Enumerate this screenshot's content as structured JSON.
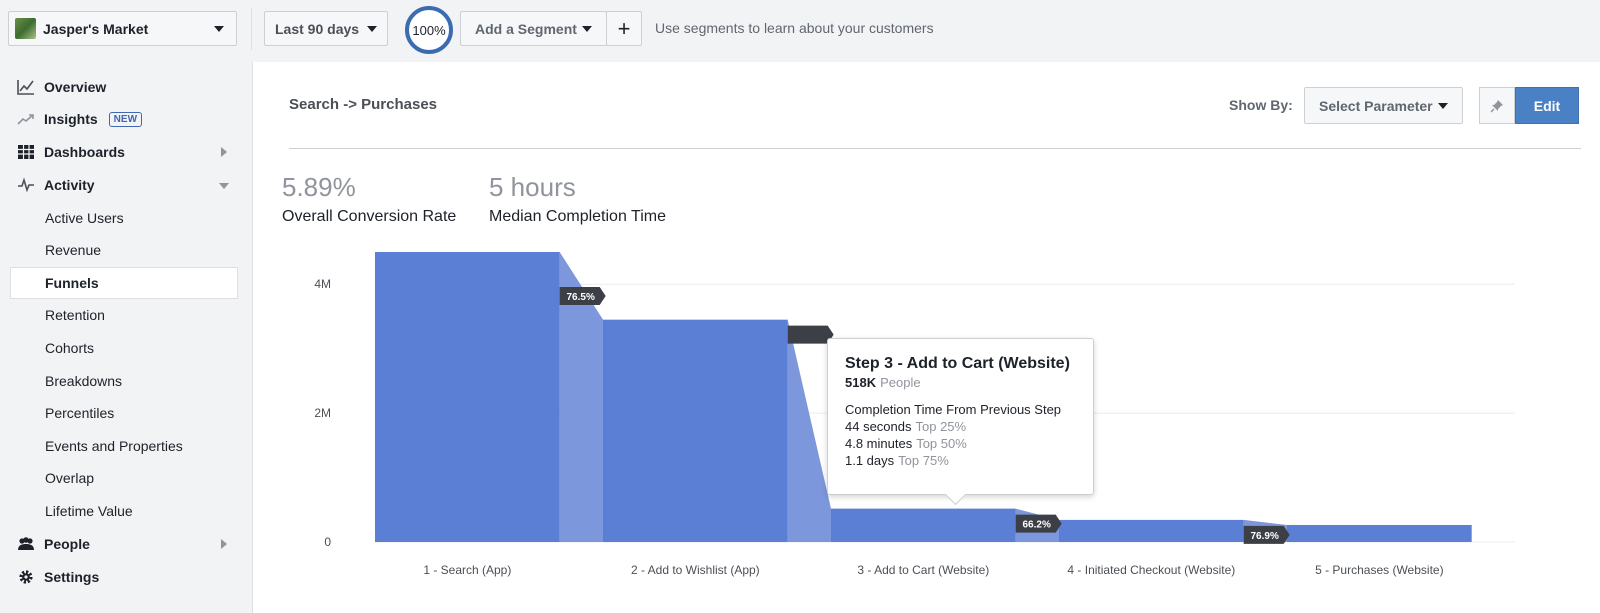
{
  "topbar": {
    "app_name": "Jasper's Market",
    "date_range": "Last 90 days",
    "zoom": "100%",
    "segment_label": "Add a Segment",
    "add_label": "+",
    "hint": "Use segments to learn about your customers"
  },
  "sidebar": {
    "items": [
      {
        "label": "Overview",
        "icon": "line-chart-icon"
      },
      {
        "label": "Insights",
        "icon": "trend-icon",
        "badge": "NEW"
      },
      {
        "label": "Dashboards",
        "icon": "grid-icon"
      },
      {
        "label": "Activity",
        "icon": "pulse-icon"
      },
      {
        "label": "Active Users"
      },
      {
        "label": "Revenue"
      },
      {
        "label": "Funnels"
      },
      {
        "label": "Retention"
      },
      {
        "label": "Cohorts"
      },
      {
        "label": "Breakdowns"
      },
      {
        "label": "Percentiles"
      },
      {
        "label": "Events and Properties"
      },
      {
        "label": "Overlap"
      },
      {
        "label": "Lifetime Value"
      },
      {
        "label": "People",
        "icon": "people-icon"
      },
      {
        "label": "Settings",
        "icon": "gear-icon"
      }
    ]
  },
  "main": {
    "title": "Search -> Purchases",
    "show_by": "Show By:",
    "select_param": "Select Parameter",
    "edit": "Edit",
    "metrics": [
      {
        "value": "5.89%",
        "label": "Overall Conversion Rate"
      },
      {
        "value": "5 hours",
        "label": "Median Completion Time"
      }
    ]
  },
  "tooltip": {
    "title": "Step 3 - Add to Cart (Website)",
    "count": "518K",
    "count_unit": "People",
    "subtitle": "Completion Time From Previous Step",
    "rows": [
      {
        "value": "44 seconds",
        "tag": "Top 25%"
      },
      {
        "value": "4.8 minutes",
        "tag": "Top 50%"
      },
      {
        "value": "1.1 days",
        "tag": "Top 75%"
      }
    ]
  },
  "chart_data": {
    "type": "bar",
    "categories": [
      "1 -  Search (App)",
      "2 - Add to Wishlist (App)",
      "3 - Add to Cart (Website)",
      "4 - Initiated Checkout (Website)",
      "5 - Purchases (Website)"
    ],
    "values": [
      4.5,
      3.45,
      0.518,
      0.343,
      0.264
    ],
    "value_unit": "M",
    "conversion_labels": [
      "76.5%",
      "",
      "66.2%",
      "76.9%"
    ],
    "y_ticks": [
      "0",
      "2M",
      "4M"
    ],
    "ylim": [
      0,
      4.5
    ],
    "grid": true,
    "bar_color": "#5b7fd4",
    "connector_color": "#7d97dc"
  }
}
